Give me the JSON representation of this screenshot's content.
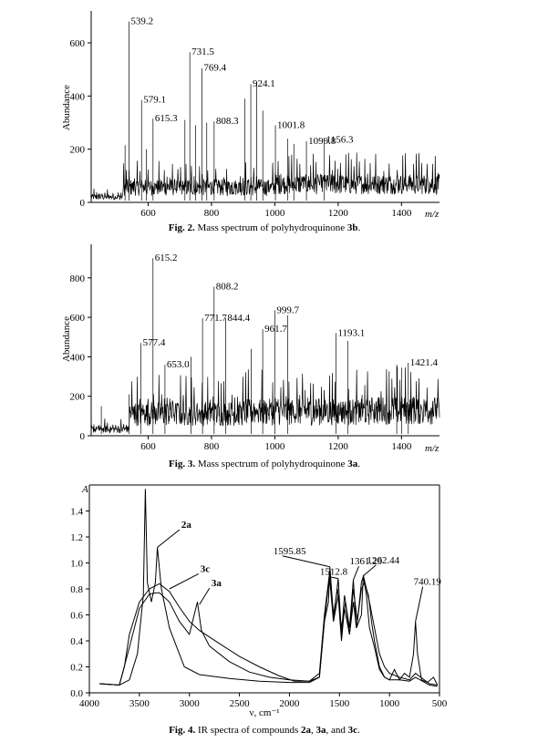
{
  "chart_data": [
    {
      "type": "line",
      "id": "fig2",
      "caption": {
        "label": "Fig. 2.",
        "text": " Mass spectrum of polyhydroquinone ",
        "compound": "3b",
        "end": "."
      },
      "ylabel": "Abundance",
      "xlabel": "m/z",
      "xlim": [
        420,
        1520
      ],
      "ylim": [
        0,
        720
      ],
      "xticks": [
        600,
        800,
        1000,
        1200,
        1400
      ],
      "yticks": [
        0,
        200,
        400,
        600
      ],
      "peaks": [
        {
          "x": 539.2,
          "y": 680,
          "label": "539.2"
        },
        {
          "x": 579.1,
          "y": 385,
          "label": "579.1"
        },
        {
          "x": 615.3,
          "y": 315,
          "label": "615.3"
        },
        {
          "x": 731.5,
          "y": 565,
          "label": "731.5"
        },
        {
          "x": 769.4,
          "y": 505,
          "label": "769.4"
        },
        {
          "x": 808.3,
          "y": 305,
          "label": "808.3"
        },
        {
          "x": 924.1,
          "y": 445,
          "label": "924.1"
        },
        {
          "x": 1001.8,
          "y": 290,
          "label": "1001.8"
        },
        {
          "x": 1099.8,
          "y": 230,
          "label": "1099.8"
        },
        {
          "x": 1156.3,
          "y": 235,
          "label": "1156.3"
        }
      ],
      "minor_peaks": [
        {
          "x": 527,
          "y": 215
        },
        {
          "x": 594,
          "y": 200
        },
        {
          "x": 716,
          "y": 310
        },
        {
          "x": 750,
          "y": 290
        },
        {
          "x": 785,
          "y": 300
        },
        {
          "x": 905,
          "y": 390
        },
        {
          "x": 943,
          "y": 445
        },
        {
          "x": 962,
          "y": 345
        },
        {
          "x": 1040,
          "y": 240
        },
        {
          "x": 1060,
          "y": 220
        }
      ]
    },
    {
      "type": "line",
      "id": "fig3",
      "caption": {
        "label": "Fig. 3.",
        "text": " Mass spectrum of polyhydroquinone ",
        "compound": "3a",
        "end": "."
      },
      "ylabel": "Abundance",
      "xlabel": "m/z",
      "xlim": [
        420,
        1520
      ],
      "ylim": [
        0,
        970
      ],
      "xticks": [
        600,
        800,
        1000,
        1200,
        1400
      ],
      "yticks": [
        0,
        200,
        400,
        600,
        800
      ],
      "peaks": [
        {
          "x": 577.4,
          "y": 470,
          "label": "577.4"
        },
        {
          "x": 615.2,
          "y": 900,
          "label": "615.2"
        },
        {
          "x": 653.0,
          "y": 360,
          "label": "653.0"
        },
        {
          "x": 771.7,
          "y": 595,
          "label": "771.7"
        },
        {
          "x": 808.2,
          "y": 755,
          "label": "808.2"
        },
        {
          "x": 844.4,
          "y": 595,
          "label": "844.4"
        },
        {
          "x": 961.7,
          "y": 540,
          "label": "961.7"
        },
        {
          "x": 999.7,
          "y": 635,
          "label": "999.7"
        },
        {
          "x": 1193.1,
          "y": 520,
          "label": "1193.1"
        },
        {
          "x": 1421.4,
          "y": 370,
          "label": "1421.4"
        }
      ],
      "minor_peaks": [
        {
          "x": 452,
          "y": 150
        },
        {
          "x": 540,
          "y": 210
        },
        {
          "x": 735,
          "y": 400
        },
        {
          "x": 925,
          "y": 440
        },
        {
          "x": 1040,
          "y": 610
        },
        {
          "x": 1230,
          "y": 480
        },
        {
          "x": 1385,
          "y": 360
        },
        {
          "x": 1400,
          "y": 345
        }
      ]
    },
    {
      "type": "line",
      "id": "fig4",
      "caption": {
        "label": "Fig. 4.",
        "text": " IR spectra of compounds ",
        "c1": "2a",
        "s1": ", ",
        "c2": "3a",
        "s2": ", and ",
        "c3": "3c",
        "end": "."
      },
      "ylabel": "A",
      "xlabel": "ν, cm⁻¹",
      "xlim": [
        4000,
        500
      ],
      "ylim": [
        0,
        1.6
      ],
      "xticks": [
        4000,
        3500,
        3000,
        2500,
        2000,
        1500,
        1000,
        500
      ],
      "yticks": [
        0,
        0.2,
        0.4,
        0.6,
        0.8,
        1.0,
        1.2,
        1.4
      ],
      "ytick_labels": [
        "0.0",
        "0.2",
        "0.4",
        "0.6",
        "0.8",
        "1.0",
        "1.2",
        "1.4"
      ],
      "series": [
        {
          "name": "2a",
          "points": [
            [
              3900,
              0.07
            ],
            [
              3700,
              0.06
            ],
            [
              3600,
              0.1
            ],
            [
              3520,
              0.3
            ],
            [
              3460,
              0.75
            ],
            [
              3440,
              1.57
            ],
            [
              3420,
              0.85
            ],
            [
              3380,
              0.7
            ],
            [
              3340,
              0.85
            ],
            [
              3320,
              1.12
            ],
            [
              3280,
              0.8
            ],
            [
              3200,
              0.5
            ],
            [
              3100,
              0.3
            ],
            [
              3050,
              0.2
            ],
            [
              2900,
              0.14
            ],
            [
              2600,
              0.11
            ],
            [
              2300,
              0.09
            ],
            [
              2000,
              0.08
            ],
            [
              1800,
              0.08
            ],
            [
              1700,
              0.12
            ],
            [
              1650,
              0.55
            ],
            [
              1610,
              0.7
            ],
            [
              1596,
              0.97
            ],
            [
              1560,
              0.55
            ],
            [
              1513,
              0.88
            ],
            [
              1480,
              0.45
            ],
            [
              1450,
              0.75
            ],
            [
              1400,
              0.5
            ],
            [
              1361,
              0.87
            ],
            [
              1330,
              0.5
            ],
            [
              1280,
              0.6
            ],
            [
              1262,
              0.9
            ],
            [
              1230,
              0.75
            ],
            [
              1200,
              0.5
            ],
            [
              1150,
              0.35
            ],
            [
              1100,
              0.18
            ],
            [
              1050,
              0.12
            ],
            [
              1000,
              0.1
            ],
            [
              950,
              0.18
            ],
            [
              900,
              0.1
            ],
            [
              850,
              0.15
            ],
            [
              800,
              0.12
            ],
            [
              760,
              0.3
            ],
            [
              740,
              0.55
            ],
            [
              720,
              0.3
            ],
            [
              680,
              0.1
            ],
            [
              620,
              0.08
            ],
            [
              560,
              0.12
            ],
            [
              520,
              0.06
            ]
          ]
        },
        {
          "name": "3c",
          "points": [
            [
              3900,
              0.07
            ],
            [
              3700,
              0.06
            ],
            [
              3650,
              0.2
            ],
            [
              3600,
              0.45
            ],
            [
              3500,
              0.7
            ],
            [
              3400,
              0.8
            ],
            [
              3300,
              0.84
            ],
            [
              3200,
              0.78
            ],
            [
              3100,
              0.66
            ],
            [
              3000,
              0.55
            ],
            [
              2900,
              0.48
            ],
            [
              2700,
              0.38
            ],
            [
              2500,
              0.28
            ],
            [
              2300,
              0.2
            ],
            [
              2100,
              0.13
            ],
            [
              1950,
              0.09
            ],
            [
              1800,
              0.09
            ],
            [
              1700,
              0.15
            ],
            [
              1650,
              0.6
            ],
            [
              1595,
              0.95
            ],
            [
              1560,
              0.6
            ],
            [
              1520,
              0.8
            ],
            [
              1480,
              0.5
            ],
            [
              1440,
              0.7
            ],
            [
              1400,
              0.45
            ],
            [
              1361,
              0.8
            ],
            [
              1320,
              0.55
            ],
            [
              1280,
              0.85
            ],
            [
              1260,
              0.9
            ],
            [
              1230,
              0.8
            ],
            [
              1200,
              0.7
            ],
            [
              1150,
              0.5
            ],
            [
              1100,
              0.3
            ],
            [
              1050,
              0.2
            ],
            [
              1000,
              0.15
            ],
            [
              900,
              0.12
            ],
            [
              800,
              0.1
            ],
            [
              740,
              0.15
            ],
            [
              600,
              0.07
            ],
            [
              520,
              0.06
            ]
          ]
        },
        {
          "name": "3a",
          "points": [
            [
              3900,
              0.07
            ],
            [
              3700,
              0.06
            ],
            [
              3600,
              0.35
            ],
            [
              3500,
              0.65
            ],
            [
              3400,
              0.76
            ],
            [
              3330,
              0.77
            ],
            [
              3300,
              0.77
            ],
            [
              3200,
              0.7
            ],
            [
              3100,
              0.55
            ],
            [
              3000,
              0.45
            ],
            [
              2920,
              0.7
            ],
            [
              2880,
              0.48
            ],
            [
              2800,
              0.36
            ],
            [
              2600,
              0.24
            ],
            [
              2400,
              0.16
            ],
            [
              2200,
              0.12
            ],
            [
              2000,
              0.1
            ],
            [
              1800,
              0.09
            ],
            [
              1700,
              0.12
            ],
            [
              1650,
              0.55
            ],
            [
              1600,
              0.9
            ],
            [
              1560,
              0.55
            ],
            [
              1513,
              0.75
            ],
            [
              1480,
              0.4
            ],
            [
              1450,
              0.65
            ],
            [
              1400,
              0.45
            ],
            [
              1360,
              0.7
            ],
            [
              1330,
              0.5
            ],
            [
              1280,
              0.8
            ],
            [
              1250,
              0.85
            ],
            [
              1210,
              0.75
            ],
            [
              1180,
              0.55
            ],
            [
              1150,
              0.4
            ],
            [
              1100,
              0.2
            ],
            [
              1050,
              0.12
            ],
            [
              1000,
              0.1
            ],
            [
              900,
              0.1
            ],
            [
              800,
              0.09
            ],
            [
              740,
              0.12
            ],
            [
              600,
              0.06
            ],
            [
              520,
              0.05
            ]
          ]
        }
      ],
      "annotations": [
        {
          "text": "1595.85",
          "x": 1596,
          "y": 0.97
        },
        {
          "text": "1512.8",
          "x": 1513,
          "y": 0.88
        },
        {
          "text": "1361.29",
          "x": 1361,
          "y": 0.87
        },
        {
          "text": "1262.44",
          "x": 1262,
          "y": 0.9
        },
        {
          "text": "740.19",
          "x": 740,
          "y": 0.55
        }
      ]
    }
  ]
}
